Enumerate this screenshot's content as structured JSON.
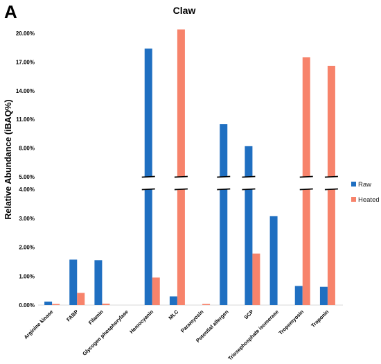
{
  "panel_label": "A",
  "chart_data": {
    "type": "bar",
    "title": "Claw",
    "ylabel": "Relative Abundance (iBAQ%)",
    "xlabel": "",
    "y_axis": "broken",
    "lower_segment": {
      "ylim": [
        0,
        4
      ],
      "ticks": [
        "0.00%",
        "1.00%",
        "2.00%",
        "3.00%",
        "4.00%"
      ]
    },
    "upper_segment": {
      "ylim": [
        5,
        20
      ],
      "ticks": [
        "5.00%",
        "8.00%",
        "11.00%",
        "14.00%",
        "17.00%",
        "20.00%"
      ]
    },
    "grid": false,
    "legend_position": "right",
    "categories": [
      "Arginine kinase",
      "FABP",
      "Filamin",
      "Glycogen phosphorylase",
      "Hemocyanin",
      "MLC",
      "Paramyosin",
      "Potential allergen",
      "SCP",
      "Triosephosphate isomerase",
      "Tropomyosin",
      "Troponin"
    ],
    "series": [
      {
        "name": "Raw",
        "color": "#1f6fc1",
        "values": [
          0.12,
          1.57,
          1.55,
          0.0,
          18.4,
          0.3,
          0.0,
          10.5,
          8.2,
          3.07,
          0.66,
          0.63
        ]
      },
      {
        "name": "Heated",
        "color": "#f7836b",
        "values": [
          0.04,
          0.42,
          0.05,
          0.0,
          0.95,
          20.4,
          0.04,
          0.0,
          1.78,
          0.0,
          17.5,
          16.6
        ]
      }
    ]
  }
}
